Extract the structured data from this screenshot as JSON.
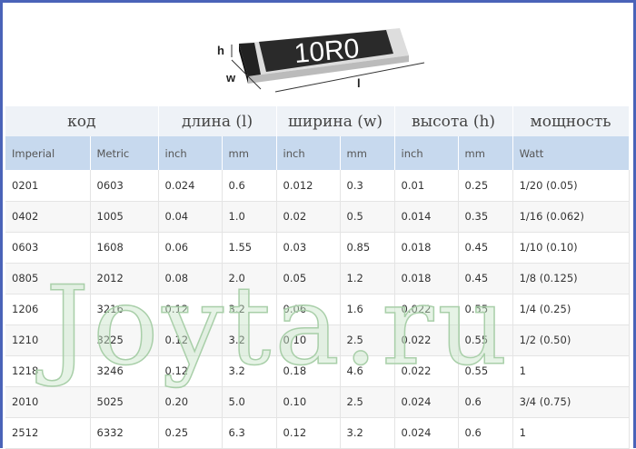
{
  "image": {
    "chip_label": "10R0",
    "dim_h": "h",
    "dim_w": "w",
    "dim_l": "l"
  },
  "groups": [
    "код",
    "длина (l)",
    "ширина (w)",
    "высота (h)",
    "мощность"
  ],
  "subheaders": [
    "Imperial",
    "Metric",
    "inch",
    "mm",
    "inch",
    "mm",
    "inch",
    "mm",
    "Watt"
  ],
  "rows": [
    [
      "0201",
      "0603",
      "0.024",
      "0.6",
      "0.012",
      "0.3",
      "0.01",
      "0.25",
      "1/20 (0.05)"
    ],
    [
      "0402",
      "1005",
      "0.04",
      "1.0",
      "0.02",
      "0.5",
      "0.014",
      "0.35",
      "1/16 (0.062)"
    ],
    [
      "0603",
      "1608",
      "0.06",
      "1.55",
      "0.03",
      "0.85",
      "0.018",
      "0.45",
      "1/10 (0.10)"
    ],
    [
      "0805",
      "2012",
      "0.08",
      "2.0",
      "0.05",
      "1.2",
      "0.018",
      "0.45",
      "1/8 (0.125)"
    ],
    [
      "1206",
      "3216",
      "0.12",
      "3.2",
      "0.06",
      "1.6",
      "0.022",
      "0.55",
      "1/4 (0.25)"
    ],
    [
      "1210",
      "3225",
      "0.12",
      "3.2",
      "0.10",
      "2.5",
      "0.022",
      "0.55",
      "1/2 (0.50)"
    ],
    [
      "1218",
      "3246",
      "0.12",
      "3.2",
      "0.18",
      "4.6",
      "0.022",
      "0.55",
      "1"
    ],
    [
      "2010",
      "5025",
      "0.20",
      "5.0",
      "0.10",
      "2.5",
      "0.024",
      "0.6",
      "3/4 (0.75)"
    ],
    [
      "2512",
      "6332",
      "0.25",
      "6.3",
      "0.12",
      "3.2",
      "0.024",
      "0.6",
      "1"
    ]
  ],
  "watermark": "Joyta.ru",
  "colors": {
    "border": "#4a63b8",
    "subheader_bg": "#c7d9ee"
  }
}
